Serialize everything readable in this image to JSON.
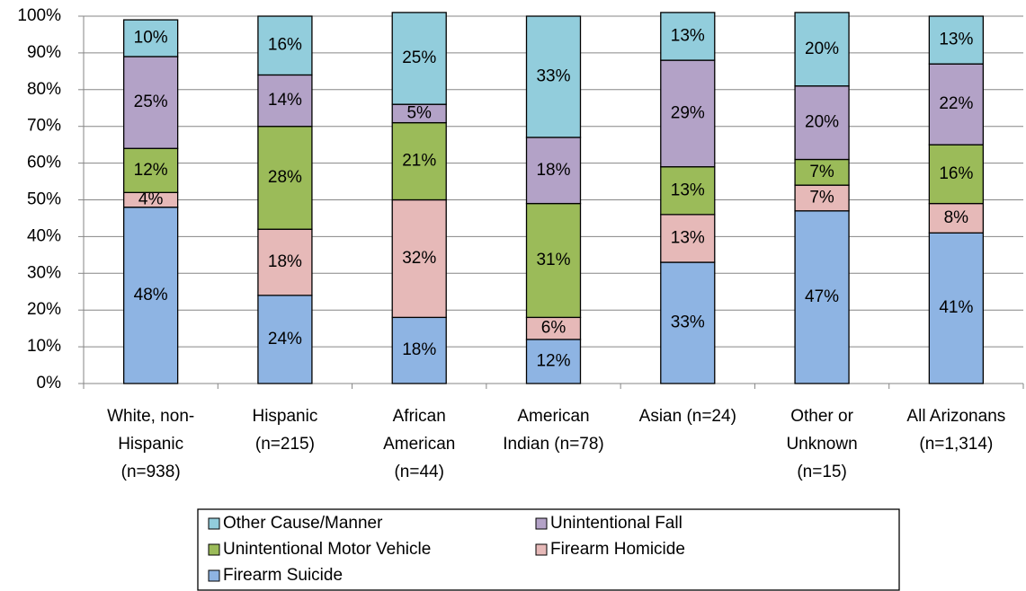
{
  "chart_data": {
    "type": "stacked_bar",
    "categories": [
      "White, non-Hispanic (n=938)",
      "Hispanic (n=215)",
      "African American (n=44)",
      "American Indian (n=78)",
      "Asian (n=24)",
      "Other or Unknown (n=15)",
      "All Arizonans (n=1,314)"
    ],
    "series": [
      {
        "name": "Firearm Suicide",
        "color": "#8eb4e3",
        "values": [
          48,
          24,
          18,
          12,
          33,
          47,
          41
        ],
        "value_labels": [
          "48%",
          "24%",
          "18%",
          "12%",
          "33%",
          "47%",
          "41%"
        ]
      },
      {
        "name": "Firearm Homicide",
        "color": "#e6b9b8",
        "values": [
          4,
          18,
          32,
          6,
          13,
          7,
          8
        ],
        "value_labels": [
          "4%",
          "18%",
          "32%",
          "6%",
          "13%",
          "7%",
          "8%"
        ]
      },
      {
        "name": "Unintentional Motor Vehicle",
        "color": "#9bbb59",
        "values": [
          12,
          28,
          21,
          31,
          13,
          7,
          16
        ],
        "value_labels": [
          "12%",
          "28%",
          "21%",
          "31%",
          "13%",
          "7%",
          "16%"
        ]
      },
      {
        "name": "Unintentional Fall",
        "color": "#b3a2c7",
        "values": [
          25,
          14,
          5,
          18,
          29,
          20,
          22
        ],
        "value_labels": [
          "25%",
          "14%",
          "5%",
          "18%",
          "29%",
          "20%",
          "22%"
        ]
      },
      {
        "name": "Other Cause/Manner",
        "color": "#92cddc",
        "values": [
          10,
          16,
          25,
          33,
          13,
          20,
          13
        ],
        "value_labels": [
          "10%",
          "16%",
          "25%",
          "33%",
          "13%",
          "20%",
          "13%"
        ]
      }
    ],
    "ylim": [
      0,
      100
    ],
    "yticks": [
      {
        "value": 0,
        "label": "0%"
      },
      {
        "value": 10,
        "label": "10%"
      },
      {
        "value": 20,
        "label": "20%"
      },
      {
        "value": 30,
        "label": "30%"
      },
      {
        "value": 40,
        "label": "40%"
      },
      {
        "value": 50,
        "label": "50%"
      },
      {
        "value": 60,
        "label": "60%"
      },
      {
        "value": 70,
        "label": "70%"
      },
      {
        "value": 80,
        "label": "80%"
      },
      {
        "value": 90,
        "label": "90%"
      },
      {
        "value": 100,
        "label": "100%"
      }
    ],
    "grid": true,
    "legend": "bottom"
  }
}
